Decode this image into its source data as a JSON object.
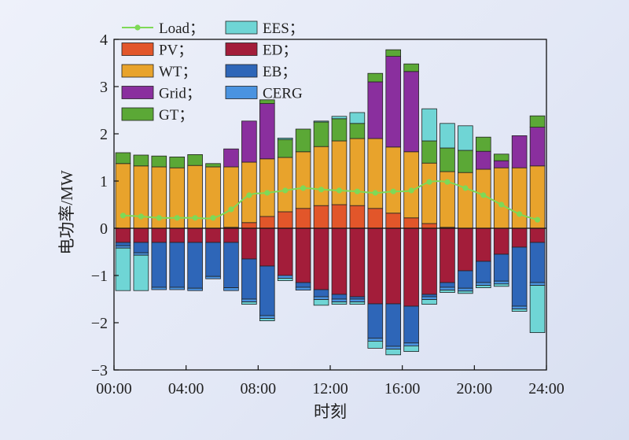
{
  "chart_data": {
    "type": "bar",
    "stacked": true,
    "xlabel": "时刻",
    "ylabel": "电功率/MW",
    "ylim": [
      -3,
      4
    ],
    "yticks": [
      -3,
      -2,
      -1,
      0,
      1,
      2,
      3,
      4
    ],
    "xlim": [
      0,
      24
    ],
    "xticks": [
      "00:00",
      "04:00",
      "08:00",
      "12:00",
      "16:00",
      "20:00",
      "24:00"
    ],
    "hours": [
      0,
      1,
      2,
      3,
      4,
      5,
      6,
      7,
      8,
      9,
      10,
      11,
      12,
      13,
      14,
      15,
      16,
      17,
      18,
      19,
      20,
      21,
      22,
      23
    ],
    "legend": [
      "Load；",
      "PV；",
      "WT；",
      "Grid；",
      "GT；",
      "EES；",
      "ED；",
      "EB；",
      "CERG"
    ],
    "colors": {
      "Load": "#7ed957",
      "PV": "#e2562a",
      "WT": "#e8a32c",
      "Grid": "#8a2f9e",
      "GT": "#5ba836",
      "EES": "#6fd5d5",
      "ED": "#a31d3a",
      "EB": "#2e66b8",
      "CERG": "#4a93e0"
    },
    "load": [
      0.27,
      0.25,
      0.22,
      0.22,
      0.22,
      0.22,
      0.4,
      0.7,
      0.75,
      0.8,
      0.85,
      0.82,
      0.8,
      0.78,
      0.75,
      0.78,
      0.8,
      0.98,
      0.98,
      0.85,
      0.7,
      0.5,
      0.3,
      0.18
    ],
    "positive_series": [
      {
        "name": "PV",
        "values": [
          0,
          0,
          0,
          0,
          0,
          0,
          0.02,
          0.12,
          0.25,
          0.35,
          0.42,
          0.48,
          0.5,
          0.48,
          0.42,
          0.32,
          0.22,
          0.1,
          0.02,
          0,
          0,
          0,
          0,
          0
        ]
      },
      {
        "name": "WT",
        "values": [
          1.37,
          1.32,
          1.3,
          1.28,
          1.33,
          1.3,
          1.28,
          1.28,
          1.22,
          1.15,
          1.2,
          1.25,
          1.35,
          1.42,
          1.48,
          1.4,
          1.4,
          1.28,
          1.18,
          1.18,
          1.25,
          1.28,
          1.28,
          1.32
        ]
      },
      {
        "name": "Grid",
        "values": [
          0,
          0,
          0,
          0,
          0,
          0,
          0.38,
          0.87,
          1.17,
          0,
          0,
          0,
          0,
          0,
          1.2,
          1.92,
          1.7,
          0,
          0,
          0,
          0.38,
          0.15,
          0.68,
          0.82
        ]
      },
      {
        "name": "GT",
        "values": [
          0.23,
          0.23,
          0.23,
          0.23,
          0.23,
          0.07,
          0,
          0,
          0.08,
          0.38,
          0.48,
          0.52,
          0.47,
          0.32,
          0.18,
          0.14,
          0.16,
          0.47,
          0.5,
          0.47,
          0.3,
          0.14,
          0,
          0.24
        ]
      },
      {
        "name": "EES",
        "values": [
          0,
          0,
          0,
          0,
          0,
          0,
          0,
          0,
          0,
          0.03,
          0,
          0.02,
          0.05,
          0.23,
          0,
          0,
          0,
          0.68,
          0.52,
          0.52,
          0,
          0,
          0,
          0
        ]
      }
    ],
    "negative_series": [
      {
        "name": "ED",
        "values": [
          -0.3,
          -0.3,
          -0.3,
          -0.3,
          -0.3,
          -0.3,
          -0.3,
          -0.65,
          -0.8,
          -1.0,
          -1.15,
          -1.3,
          -1.4,
          -1.45,
          -1.6,
          -1.6,
          -1.65,
          -1.4,
          -1.15,
          -0.9,
          -0.7,
          -0.55,
          -0.4,
          -0.3
        ]
      },
      {
        "name": "EB",
        "values": [
          -0.07,
          -0.22,
          -0.95,
          -0.95,
          -0.97,
          -0.72,
          -0.96,
          -0.85,
          -1.05,
          0,
          -0.1,
          -0.15,
          -0.1,
          -0.05,
          -0.73,
          -0.9,
          -0.78,
          -0.05,
          -0.1,
          -0.37,
          -0.45,
          -0.57,
          -1.25,
          -0.85
        ]
      },
      {
        "name": "CERG",
        "values": [
          -0.05,
          -0.05,
          -0.05,
          -0.05,
          -0.05,
          -0.05,
          -0.06,
          -0.06,
          -0.06,
          -0.06,
          -0.06,
          -0.06,
          -0.06,
          -0.06,
          -0.06,
          -0.06,
          -0.06,
          -0.06,
          -0.06,
          -0.06,
          -0.06,
          -0.06,
          -0.06,
          -0.06
        ]
      },
      {
        "name": "EES",
        "values": [
          -0.9,
          -0.75,
          0,
          0,
          0,
          0,
          0,
          -0.05,
          -0.05,
          -0.05,
          0,
          -0.12,
          -0.05,
          -0.05,
          -0.15,
          -0.12,
          -0.12,
          -0.1,
          -0.05,
          -0.05,
          -0.05,
          -0.05,
          -0.05,
          -1.0
        ]
      }
    ]
  }
}
